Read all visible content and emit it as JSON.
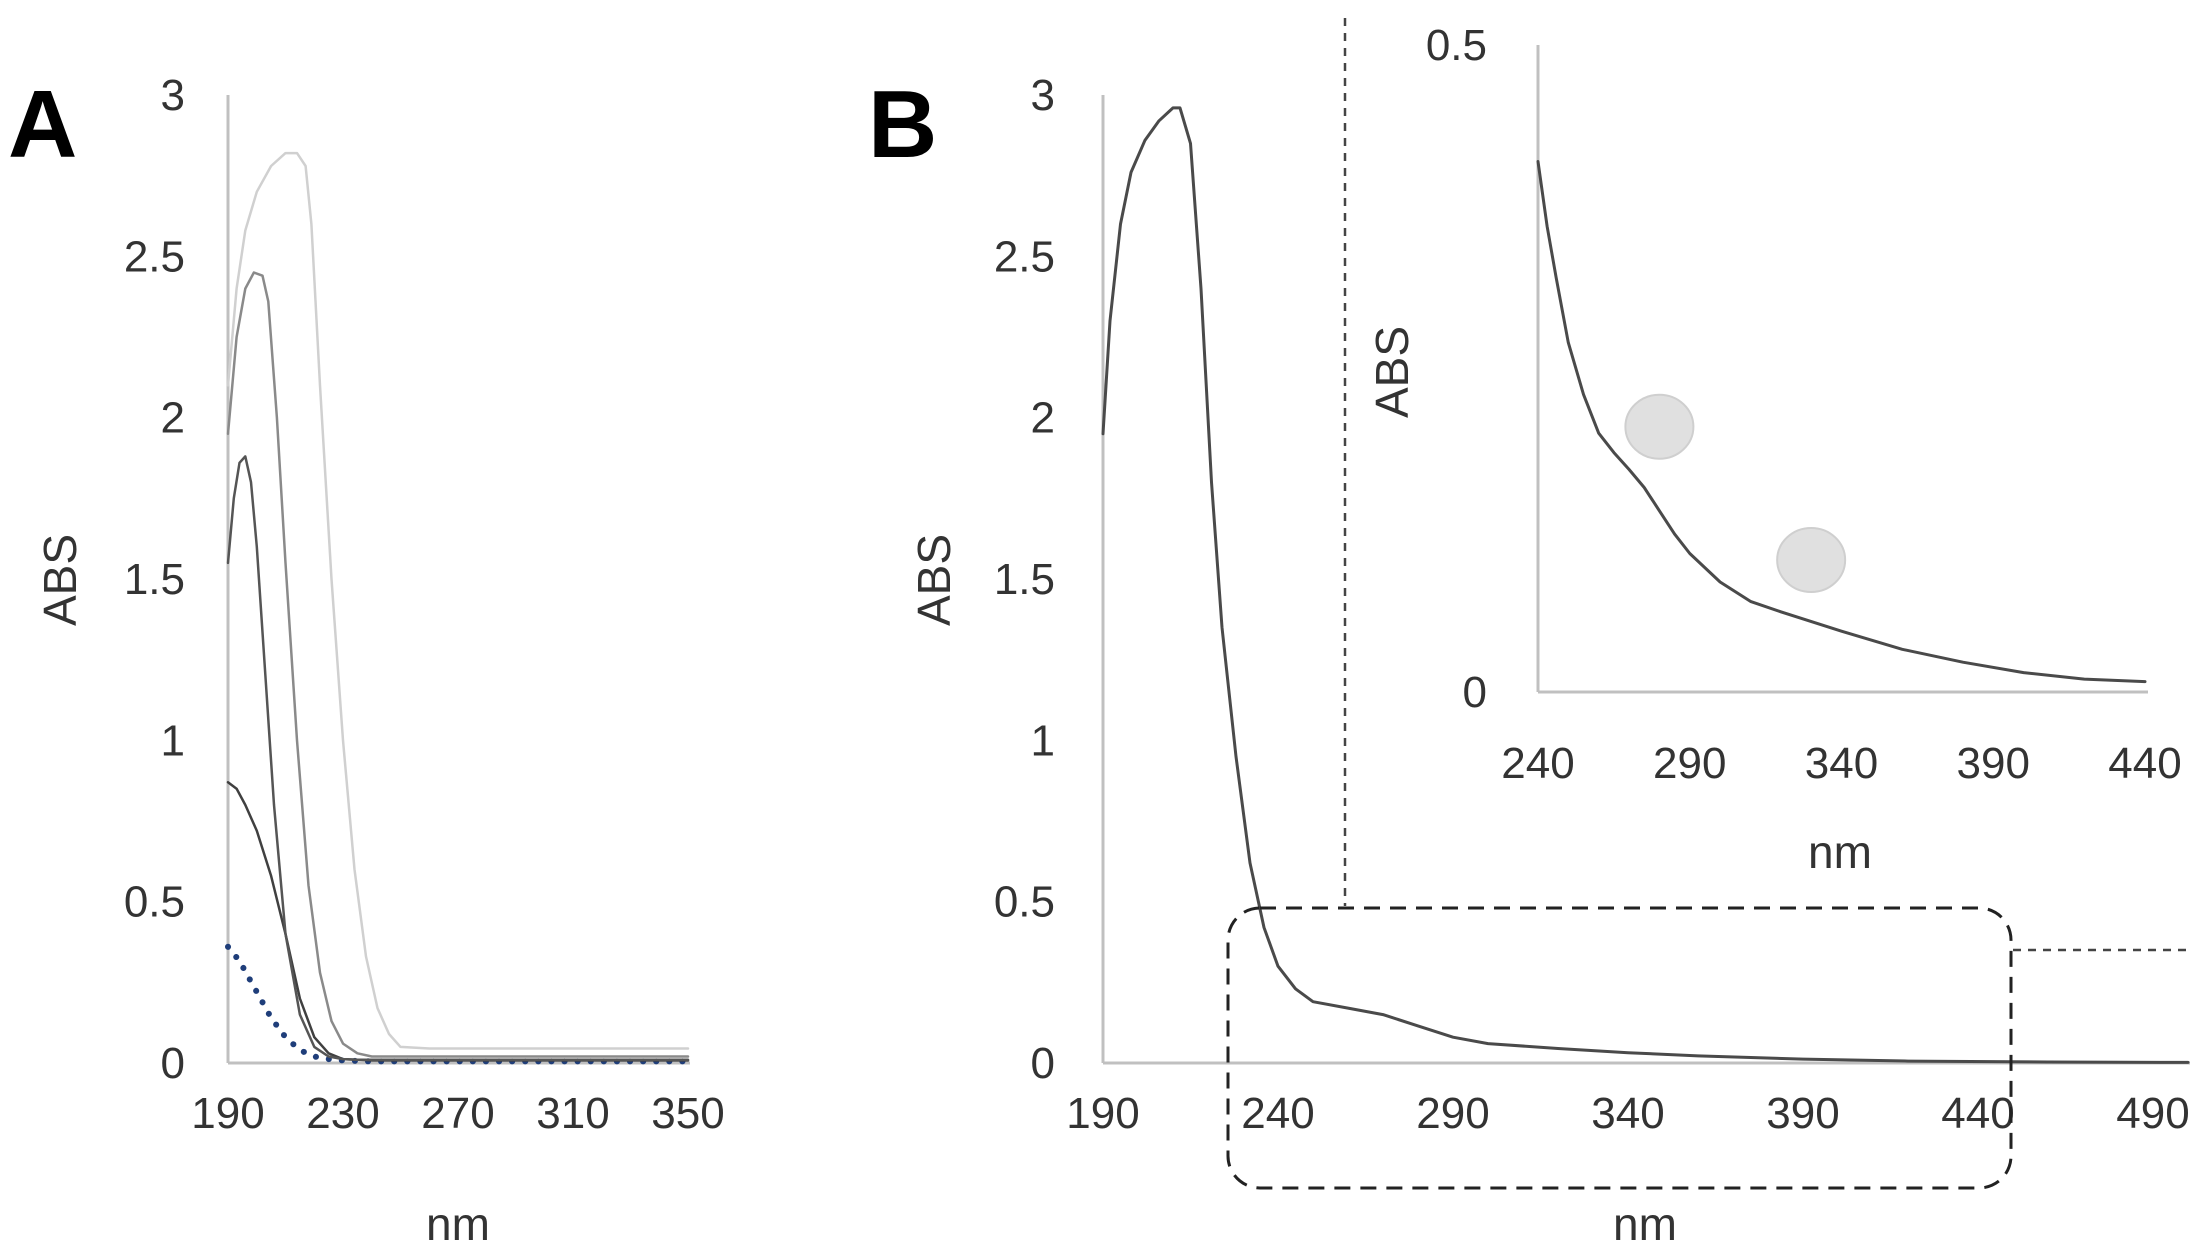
{
  "chart_data": [
    {
      "panel": "A",
      "type": "line",
      "xlabel": "nm",
      "ylabel": "ABS",
      "xlim": [
        190,
        350
      ],
      "ylim": [
        0,
        3
      ],
      "xticks": [
        "190",
        "230",
        "270",
        "310",
        "350"
      ],
      "yticks": [
        "0",
        "0.5",
        "1",
        "1.5",
        "2",
        "2.5",
        "3"
      ],
      "series": [
        {
          "name": "dotted",
          "color": "#1f3e7a",
          "style": "dotted",
          "x": [
            190,
            192,
            195,
            200,
            205,
            210,
            215,
            220,
            225,
            230,
            240,
            260,
            300,
            350
          ],
          "y": [
            0.36,
            0.34,
            0.3,
            0.22,
            0.14,
            0.08,
            0.04,
            0.02,
            0.012,
            0.008,
            0.005,
            0.005,
            0.005,
            0.005
          ]
        },
        {
          "name": "s1",
          "color": "#404040",
          "style": "solid",
          "x": [
            190,
            193,
            196,
            200,
            205,
            210,
            215,
            220,
            225,
            230,
            240,
            260,
            300,
            350
          ],
          "y": [
            0.87,
            0.85,
            0.8,
            0.72,
            0.58,
            0.4,
            0.2,
            0.08,
            0.03,
            0.012,
            0.008,
            0.008,
            0.008,
            0.008
          ]
        },
        {
          "name": "s2",
          "color": "#555555",
          "style": "solid",
          "x": [
            190,
            192,
            194,
            196,
            198,
            200,
            203,
            206,
            210,
            215,
            220,
            225,
            230,
            235,
            245,
            260,
            300,
            350
          ],
          "y": [
            1.55,
            1.75,
            1.86,
            1.88,
            1.8,
            1.6,
            1.2,
            0.8,
            0.4,
            0.15,
            0.05,
            0.02,
            0.012,
            0.01,
            0.01,
            0.01,
            0.01,
            0.01
          ]
        },
        {
          "name": "s3",
          "color": "#8a8a8a",
          "style": "solid",
          "x": [
            190,
            193,
            196,
            199,
            202,
            204,
            207,
            210,
            214,
            218,
            222,
            226,
            230,
            235,
            240,
            250,
            270,
            300,
            350
          ],
          "y": [
            1.95,
            2.25,
            2.4,
            2.45,
            2.44,
            2.36,
            2.0,
            1.55,
            1.0,
            0.55,
            0.28,
            0.13,
            0.06,
            0.03,
            0.02,
            0.02,
            0.02,
            0.02,
            0.02
          ]
        },
        {
          "name": "s4",
          "color": "#d0d0d0",
          "style": "solid",
          "x": [
            190,
            193,
            196,
            200,
            205,
            210,
            214,
            217,
            219,
            222,
            226,
            230,
            234,
            238,
            242,
            246,
            250,
            260,
            280,
            300,
            350
          ],
          "y": [
            2.1,
            2.4,
            2.58,
            2.7,
            2.78,
            2.82,
            2.82,
            2.78,
            2.6,
            2.1,
            1.5,
            1.0,
            0.6,
            0.33,
            0.17,
            0.09,
            0.05,
            0.045,
            0.045,
            0.045,
            0.045
          ]
        }
      ]
    },
    {
      "panel": "B",
      "type": "line",
      "xlabel": "nm",
      "ylabel": "ABS",
      "xlim": [
        190,
        500
      ],
      "ylim": [
        0,
        3
      ],
      "xticks": [
        "190",
        "240",
        "290",
        "340",
        "390",
        "440",
        "490"
      ],
      "yticks": [
        "0",
        "0.5",
        "1",
        "1.5",
        "2",
        "2.5",
        "3"
      ],
      "series": [
        {
          "name": "spectrum",
          "color": "#4a4a4a",
          "style": "solid",
          "x": [
            190,
            192,
            195,
            198,
            202,
            206,
            210,
            212,
            215,
            218,
            221,
            224,
            228,
            232,
            236,
            240,
            245,
            250,
            260,
            270,
            280,
            290,
            300,
            320,
            340,
            360,
            390,
            420,
            460,
            500
          ],
          "y": [
            1.95,
            2.3,
            2.6,
            2.76,
            2.86,
            2.92,
            2.96,
            2.96,
            2.85,
            2.4,
            1.8,
            1.35,
            0.95,
            0.62,
            0.42,
            0.3,
            0.23,
            0.19,
            0.17,
            0.15,
            0.115,
            0.08,
            0.06,
            0.045,
            0.032,
            0.022,
            0.012,
            0.006,
            0.003,
            0.002
          ]
        }
      ]
    },
    {
      "panel": "B-inset",
      "type": "line",
      "xlabel": "nm",
      "ylabel": "ABS",
      "xlim": [
        240,
        440
      ],
      "ylim": [
        0,
        0.5
      ],
      "xticks": [
        "240",
        "290",
        "340",
        "390",
        "440"
      ],
      "yticks": [
        "0",
        "0.5"
      ],
      "series": [
        {
          "name": "spectrum-zoom",
          "color": "#4a4a4a",
          "style": "solid",
          "x": [
            240,
            243,
            246,
            250,
            255,
            260,
            265,
            270,
            275,
            280,
            285,
            290,
            300,
            310,
            320,
            340,
            360,
            380,
            400,
            420,
            440
          ],
          "y": [
            0.41,
            0.36,
            0.32,
            0.27,
            0.23,
            0.2,
            0.185,
            0.172,
            0.158,
            0.14,
            0.122,
            0.107,
            0.085,
            0.07,
            0.062,
            0.047,
            0.033,
            0.023,
            0.015,
            0.01,
            0.008
          ]
        }
      ],
      "markers": [
        {
          "name": "shoulder-1",
          "x": 280,
          "y": 0.205,
          "color": "#e0e0e0"
        },
        {
          "name": "shoulder-2",
          "x": 330,
          "y": 0.102,
          "color": "#e0e0e0"
        }
      ]
    }
  ]
}
